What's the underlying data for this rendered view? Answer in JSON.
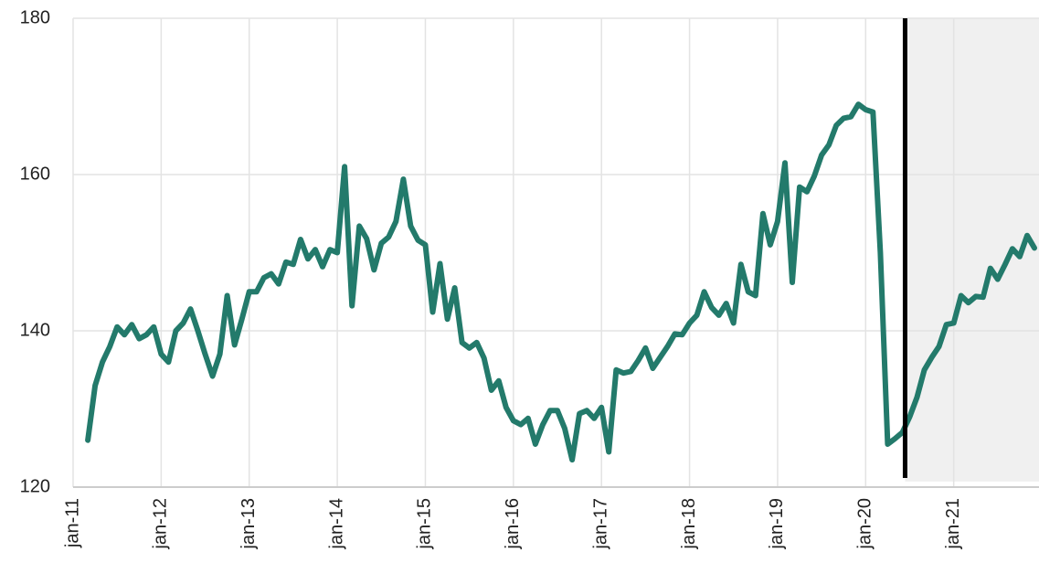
{
  "chart_data": {
    "type": "line",
    "categories": [
      "jan-11",
      null,
      null,
      null,
      null,
      null,
      null,
      null,
      null,
      null,
      null,
      null,
      "jan-12",
      null,
      null,
      null,
      null,
      null,
      null,
      null,
      null,
      null,
      null,
      null,
      "jan-13",
      null,
      null,
      null,
      null,
      null,
      null,
      null,
      null,
      null,
      null,
      null,
      "jan-14",
      null,
      null,
      null,
      null,
      null,
      null,
      null,
      null,
      null,
      null,
      null,
      "jan-15",
      null,
      null,
      null,
      null,
      null,
      null,
      null,
      null,
      null,
      null,
      null,
      "jan-16",
      null,
      null,
      null,
      null,
      null,
      null,
      null,
      null,
      null,
      null,
      null,
      "jan-17",
      null,
      null,
      null,
      null,
      null,
      null,
      null,
      null,
      null,
      null,
      null,
      "jan-18",
      null,
      null,
      null,
      null,
      null,
      null,
      null,
      null,
      null,
      null,
      null,
      "jan-19",
      null,
      null,
      null,
      null,
      null,
      null,
      null,
      null,
      null,
      null,
      null,
      "jan-20",
      null,
      null,
      null,
      null,
      null,
      null,
      null,
      null,
      null,
      null,
      null,
      "jan-21",
      null,
      null,
      null,
      null,
      null,
      null,
      null,
      null,
      null,
      null,
      null
    ],
    "values": [
      null,
      null,
      126,
      133,
      136,
      138,
      140.5,
      139.5,
      140.8,
      139,
      139.5,
      140.5,
      137,
      136,
      140,
      141,
      142.8,
      140,
      137,
      134.2,
      137,
      144.5,
      138.2,
      141.5,
      145,
      145,
      146.8,
      147.3,
      146,
      148.8,
      148.5,
      151.7,
      149.2,
      150.4,
      148.2,
      150.4,
      150,
      161,
      143.2,
      153.4,
      151.8,
      147.8,
      151.2,
      152,
      154,
      159.4,
      153.4,
      151.6,
      151,
      142.4,
      148.6,
      141.5,
      145.5,
      138.5,
      137.8,
      138.5,
      136.5,
      132.4,
      133.6,
      130.2,
      128.5,
      128,
      128.8,
      125.5,
      128,
      129.8,
      129.8,
      127.5,
      123.5,
      129.4,
      129.8,
      128.8,
      130.2,
      124.5,
      135,
      134.6,
      134.8,
      136.2,
      137.8,
      135.2,
      136.6,
      138,
      139.6,
      139.5,
      141,
      142,
      145,
      143,
      142,
      143.5,
      141,
      148.5,
      145,
      144.5,
      155,
      151,
      154,
      161.5,
      146.2,
      158.4,
      157.8,
      159.8,
      162.5,
      163.8,
      166.3,
      167.2,
      167.4,
      169,
      168.3,
      168,
      150,
      125.5,
      126.2,
      127,
      129,
      131.5,
      135,
      136.6,
      138,
      140.8,
      141,
      144.5,
      143.6,
      144.4,
      144.3,
      148,
      146.6,
      148.5,
      150.5,
      149.5,
      152.2,
      150.6
    ],
    "color": "#237a6b",
    "ylim": [
      120,
      180
    ],
    "yticks": [
      120,
      140,
      160,
      180
    ],
    "grid": true,
    "marker_index": 113,
    "shade_color": "#f0f0f0"
  }
}
